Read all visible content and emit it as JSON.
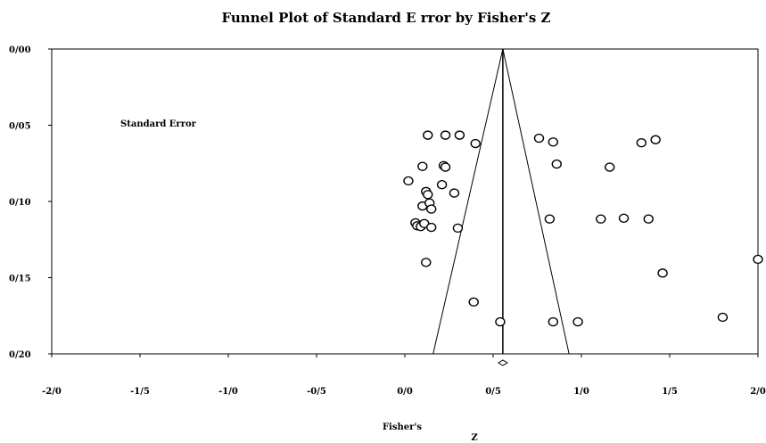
{
  "chart_data": {
    "type": "scatter",
    "title": "Funnel Plot of Standard E rror by Fisher's Z",
    "xlabel_line1": "Fisher's",
    "xlabel_line2": "Z",
    "ylabel": "Standard Error",
    "xlim": [
      -2.0,
      2.0
    ],
    "ylim": [
      0.0,
      0.2
    ],
    "y_inverted": true,
    "x_ticks": [
      -2.0,
      -1.5,
      -1.0,
      -0.5,
      0.0,
      0.5,
      1.0,
      1.5,
      2.0
    ],
    "x_tick_labels": [
      "-2/0",
      "-1/5",
      "-1/0",
      "-0/5",
      "0/0",
      "0/5",
      "1/0",
      "1/5",
      "2/0"
    ],
    "y_ticks": [
      0.0,
      0.05,
      0.1,
      0.15,
      0.2
    ],
    "y_tick_labels": [
      "0/00",
      "0/05",
      "0/10",
      "0/15",
      "0/20"
    ],
    "summary_z": 0.555,
    "funnel": {
      "apex": [
        0.555,
        0.0
      ],
      "bottom_left": [
        0.16,
        0.2
      ],
      "bottom_right": [
        0.93,
        0.2
      ]
    },
    "summary_diamond": {
      "x": 0.555,
      "y_offset_label": ""
    },
    "grid": false,
    "points": [
      {
        "x": 0.13,
        "y": 0.0565
      },
      {
        "x": 0.23,
        "y": 0.0565
      },
      {
        "x": 0.31,
        "y": 0.0565
      },
      {
        "x": 0.4,
        "y": 0.062
      },
      {
        "x": 0.76,
        "y": 0.0585
      },
      {
        "x": 0.84,
        "y": 0.061
      },
      {
        "x": 1.34,
        "y": 0.0615
      },
      {
        "x": 1.42,
        "y": 0.0595
      },
      {
        "x": 0.1,
        "y": 0.077
      },
      {
        "x": 0.22,
        "y": 0.0765
      },
      {
        "x": 0.23,
        "y": 0.0775
      },
      {
        "x": 0.86,
        "y": 0.0755
      },
      {
        "x": 1.16,
        "y": 0.0775
      },
      {
        "x": 0.02,
        "y": 0.0865
      },
      {
        "x": 0.21,
        "y": 0.089
      },
      {
        "x": 0.12,
        "y": 0.0935
      },
      {
        "x": 0.13,
        "y": 0.0955
      },
      {
        "x": 0.28,
        "y": 0.0945
      },
      {
        "x": 0.1,
        "y": 0.103
      },
      {
        "x": 0.14,
        "y": 0.101
      },
      {
        "x": 0.15,
        "y": 0.105
      },
      {
        "x": 0.06,
        "y": 0.114
      },
      {
        "x": 0.07,
        "y": 0.116
      },
      {
        "x": 0.09,
        "y": 0.1165
      },
      {
        "x": 0.11,
        "y": 0.1145
      },
      {
        "x": 0.15,
        "y": 0.117
      },
      {
        "x": 0.3,
        "y": 0.1175
      },
      {
        "x": 0.82,
        "y": 0.1115
      },
      {
        "x": 1.11,
        "y": 0.1115
      },
      {
        "x": 1.24,
        "y": 0.111
      },
      {
        "x": 1.38,
        "y": 0.1115
      },
      {
        "x": 0.12,
        "y": 0.14
      },
      {
        "x": 1.46,
        "y": 0.147
      },
      {
        "x": 2.0,
        "y": 0.138
      },
      {
        "x": 0.39,
        "y": 0.166
      },
      {
        "x": 0.54,
        "y": 0.179
      },
      {
        "x": 0.84,
        "y": 0.179
      },
      {
        "x": 0.98,
        "y": 0.179
      },
      {
        "x": 1.8,
        "y": 0.176
      }
    ]
  }
}
